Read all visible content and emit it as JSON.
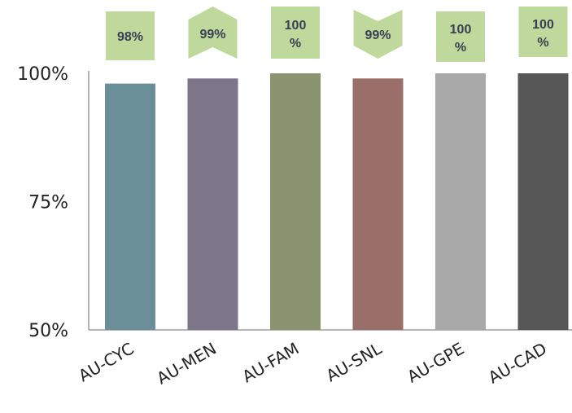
{
  "chart_data": {
    "type": "bar",
    "categories": [
      "AU-CYC",
      "AU-MEN",
      "AU-FAM",
      "AU-SNL",
      "AU-GPE",
      "AU-CAD"
    ],
    "values": [
      98,
      99,
      100,
      99,
      100,
      100
    ],
    "data_labels": [
      "98%",
      "99%",
      "100\n%",
      "99%",
      "100\n%",
      "100\n%"
    ],
    "colors": [
      "#6b8f99",
      "#7d7589",
      "#8a9470",
      "#9a6e69",
      "#a9a9a9",
      "#575757"
    ],
    "label_color": "#bfd89b",
    "ylim": [
      50,
      100
    ],
    "yticks": [
      50,
      75,
      100
    ],
    "ytick_labels": [
      "50%",
      "75%",
      "100%"
    ],
    "title": "",
    "xlabel": "",
    "ylabel": "",
    "grid": false,
    "legend": "none"
  }
}
